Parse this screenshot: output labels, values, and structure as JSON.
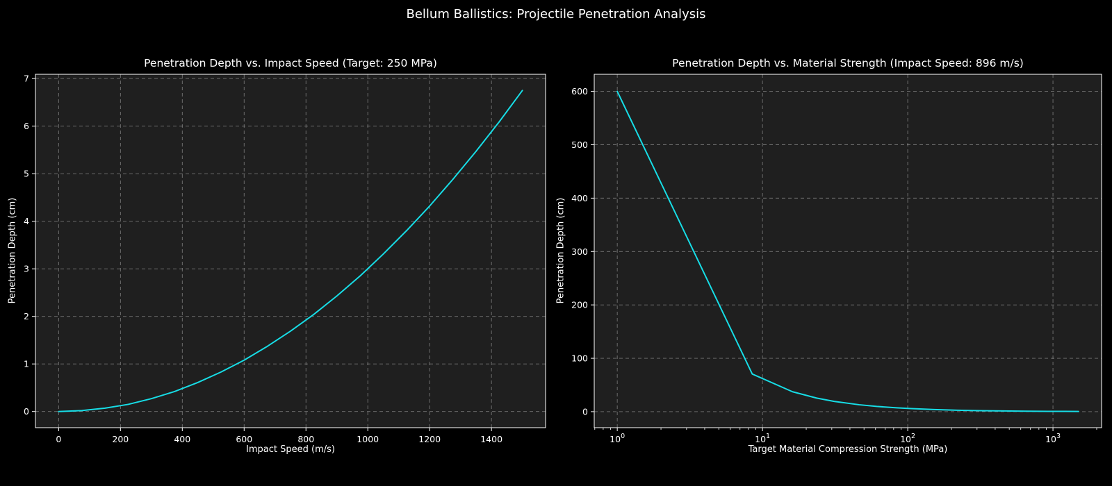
{
  "figure": {
    "suptitle": "Bellum Ballistics: Projectile Penetration Analysis",
    "background_color": "#000000",
    "axes_background_color": "#1f1f1f",
    "text_color": "#ffffff",
    "grid_color": "#a3a3a3",
    "spine_color": "#ffffff",
    "line_color": "#17dde6"
  },
  "chart_data": [
    {
      "type": "line",
      "title": "Penetration Depth vs. Impact Speed (Target: 250 MPa)",
      "xlabel": "Impact Speed (m/s)",
      "ylabel": "Penetration Depth (cm)",
      "xscale": "linear",
      "yscale": "linear",
      "xlim": [
        -75,
        1575
      ],
      "ylim": [
        -0.34,
        7.09
      ],
      "xticks": [
        0,
        200,
        400,
        600,
        800,
        1000,
        1200,
        1400
      ],
      "xtick_labels": [
        "0",
        "200",
        "400",
        "600",
        "800",
        "1000",
        "1200",
        "1400"
      ],
      "yticks": [
        0,
        1,
        2,
        3,
        4,
        5,
        6,
        7
      ],
      "ytick_labels": [
        "0",
        "1",
        "2",
        "3",
        "4",
        "5",
        "6",
        "7"
      ],
      "grid": true,
      "legend": "none",
      "series": [
        {
          "name": "penetration-depth-vs-speed",
          "x": [
            0,
            75,
            150,
            225,
            300,
            375,
            450,
            525,
            600,
            675,
            750,
            825,
            900,
            975,
            1050,
            1125,
            1200,
            1275,
            1350,
            1425,
            1500
          ],
          "y": [
            0,
            0.02,
            0.07,
            0.15,
            0.27,
            0.42,
            0.61,
            0.83,
            1.08,
            1.37,
            1.69,
            2.04,
            2.43,
            2.85,
            3.31,
            3.8,
            4.32,
            4.88,
            5.47,
            6.09,
            6.75
          ]
        }
      ]
    },
    {
      "type": "line",
      "title": "Penetration Depth vs. Material Strength (Impact Speed: 896 m/s)",
      "xlabel": "Target Material Compression Strength (MPa)",
      "ylabel": "Penetration Depth (cm)",
      "xscale": "log",
      "yscale": "linear",
      "xlim": [
        0.694,
        2161
      ],
      "ylim": [
        -30,
        632
      ],
      "xticks": [
        1,
        10,
        100,
        1000
      ],
      "xtick_labels": [
        "10⁰",
        "10¹",
        "10²",
        "10³"
      ],
      "yticks": [
        0,
        100,
        200,
        300,
        400,
        500,
        600
      ],
      "ytick_labels": [
        "0",
        "100",
        "200",
        "300",
        "400",
        "500",
        "600"
      ],
      "grid": true,
      "legend": "none",
      "series": [
        {
          "name": "penetration-depth-vs-strength",
          "x": [
            1,
            8.5,
            16.1,
            23.6,
            31.1,
            46.2,
            61.2,
            83.8,
            106,
            152,
            219,
            317,
            452,
            648,
            927,
            1200,
            1500
          ],
          "y": [
            600,
            70.6,
            37.3,
            25.4,
            19.3,
            13.0,
            9.8,
            7.2,
            5.7,
            3.9,
            2.7,
            1.9,
            1.3,
            0.9,
            0.6,
            0.5,
            0.4
          ]
        }
      ]
    }
  ]
}
